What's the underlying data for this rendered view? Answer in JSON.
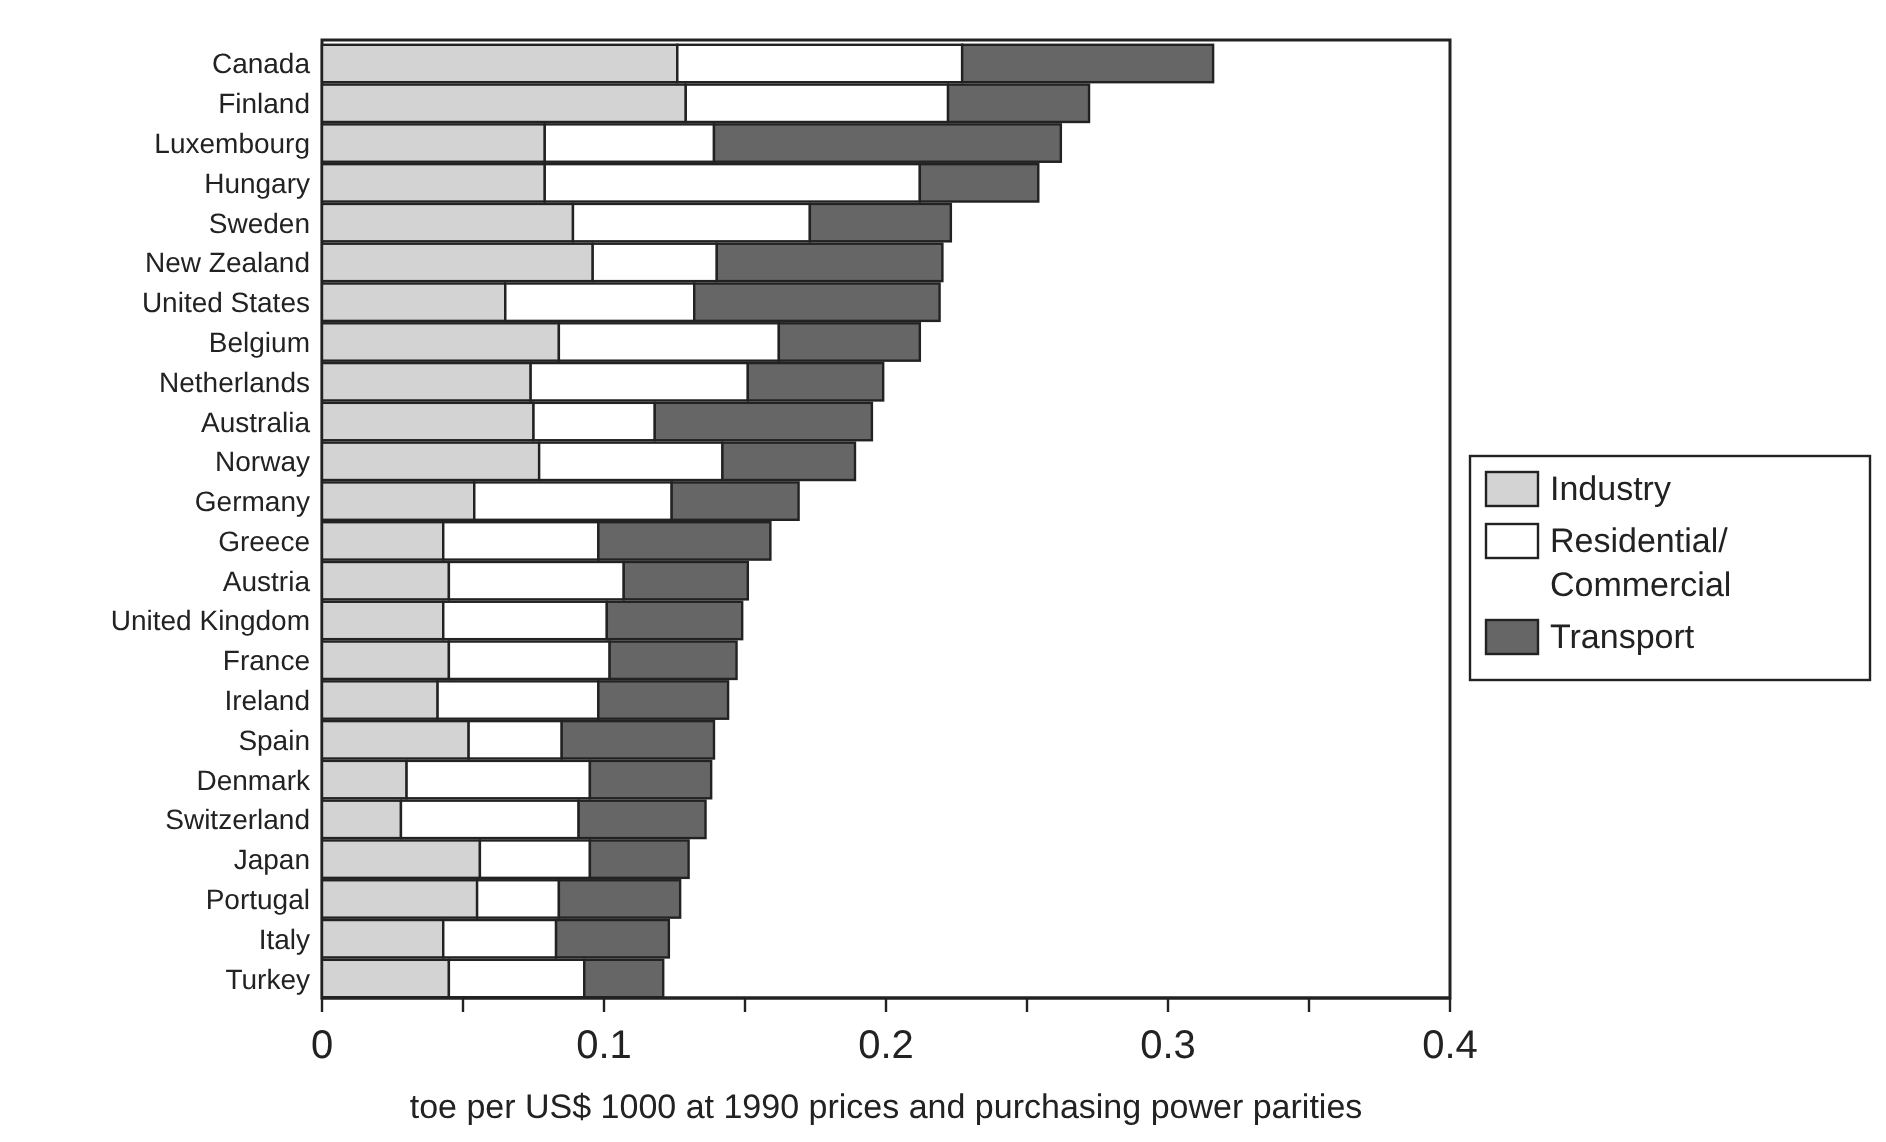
{
  "chart_data": {
    "type": "bar",
    "orientation": "horizontal",
    "stacked": true,
    "xlabel": "toe per US$ 1000 at 1990 prices and purchasing power parities",
    "categories": [
      "Canada",
      "Finland",
      "Luxembourg",
      "Hungary",
      "Sweden",
      "New Zealand",
      "United States",
      "Belgium",
      "Netherlands",
      "Australia",
      "Norway",
      "Germany",
      "Greece",
      "Austria",
      "United Kingdom",
      "France",
      "Ireland",
      "Spain",
      "Denmark",
      "Switzerland",
      "Japan",
      "Portugal",
      "Italy",
      "Turkey"
    ],
    "series": [
      {
        "name": "Industry",
        "color": "#d3d3d3",
        "values": [
          0.126,
          0.129,
          0.079,
          0.079,
          0.089,
          0.096,
          0.065,
          0.084,
          0.074,
          0.075,
          0.077,
          0.054,
          0.043,
          0.045,
          0.043,
          0.045,
          0.041,
          0.052,
          0.03,
          0.028,
          0.056,
          0.055,
          0.043,
          0.045
        ]
      },
      {
        "name": "Residential/Commercial",
        "color": "#ffffff",
        "values": [
          0.101,
          0.093,
          0.06,
          0.133,
          0.084,
          0.044,
          0.067,
          0.078,
          0.077,
          0.043,
          0.065,
          0.07,
          0.055,
          0.062,
          0.058,
          0.057,
          0.057,
          0.033,
          0.065,
          0.063,
          0.039,
          0.029,
          0.04,
          0.048
        ]
      },
      {
        "name": "Transport",
        "color": "#666666",
        "values": [
          0.089,
          0.05,
          0.123,
          0.042,
          0.05,
          0.08,
          0.087,
          0.05,
          0.048,
          0.077,
          0.047,
          0.045,
          0.061,
          0.044,
          0.048,
          0.045,
          0.046,
          0.054,
          0.043,
          0.045,
          0.035,
          0.043,
          0.04,
          0.028
        ]
      }
    ],
    "xlim": [
      0,
      0.4
    ],
    "xticks": [
      0,
      {
        "value": 0.05,
        "label": null
      },
      0.1,
      {
        "value": 0.15,
        "label": null
      },
      0.2,
      {
        "value": 0.25,
        "label": null
      },
      0.3,
      {
        "value": 0.35,
        "label": null
      },
      0.4
    ],
    "legend": "right"
  }
}
